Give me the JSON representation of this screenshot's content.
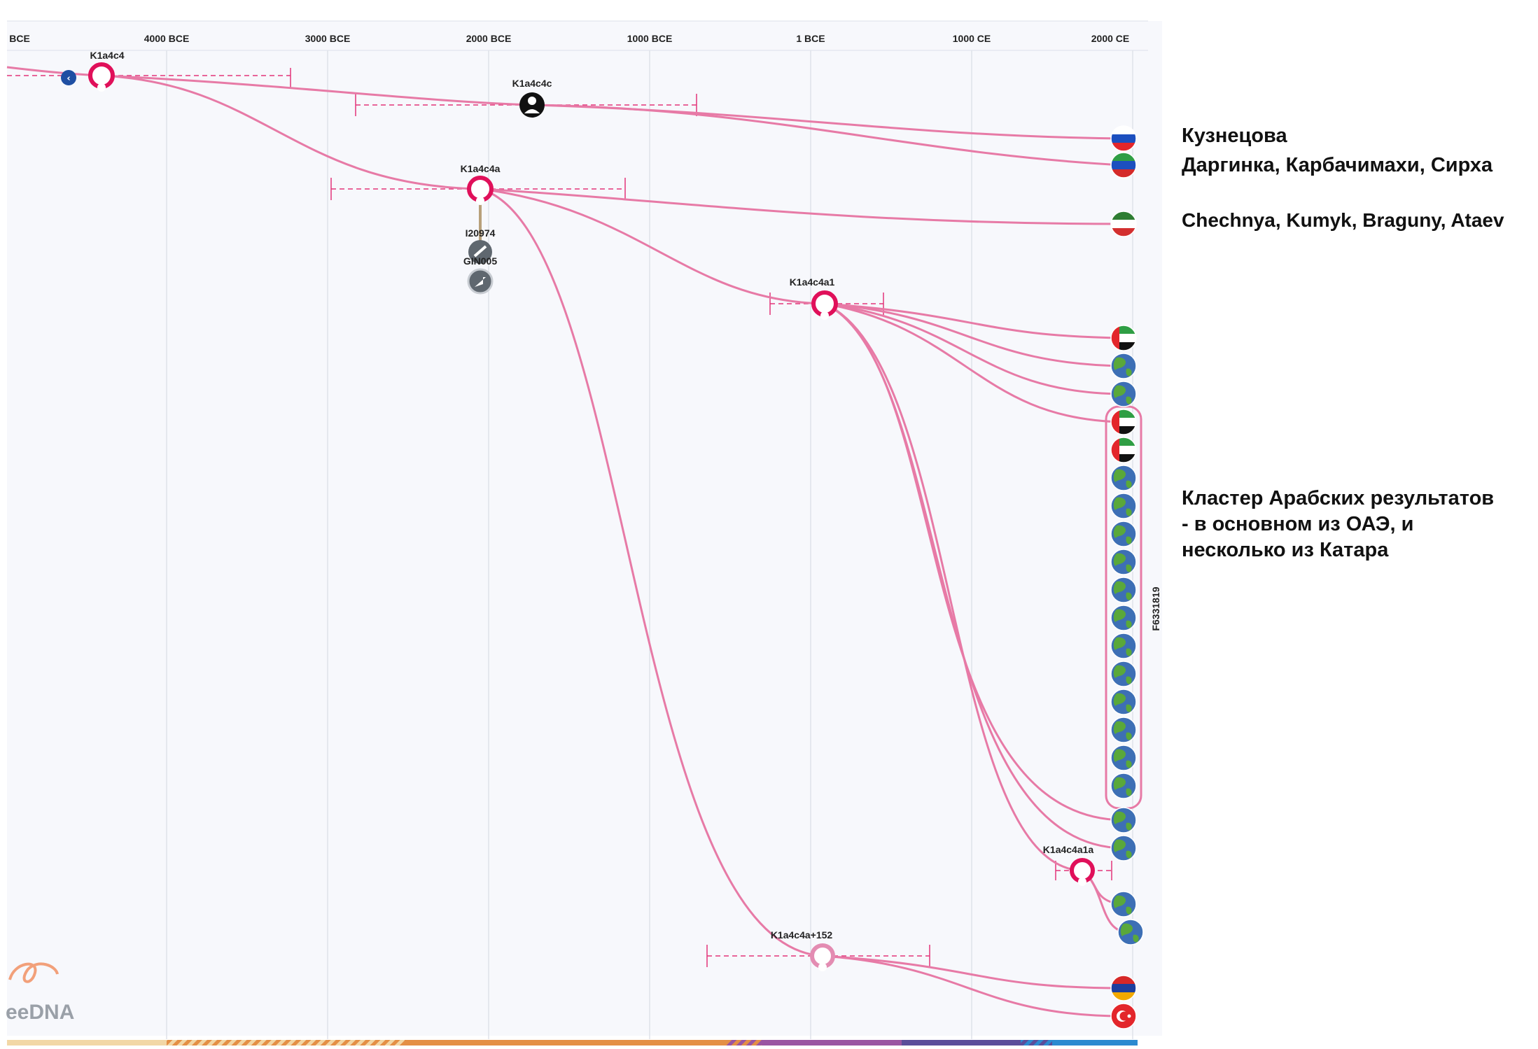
{
  "timeline": {
    "ticks": [
      "BCE",
      "4000 BCE",
      "3000 BCE",
      "2000 BCE",
      "1000 BCE",
      "1 BCE",
      "1000 CE",
      "2000 CE"
    ]
  },
  "nodes": {
    "k1a4c4": "K1a4c4",
    "k1a4c4c": "K1a4c4c",
    "k1a4c4a": "K1a4c4a",
    "i20974": "I20974",
    "gin005": "GIN005",
    "k1a4c4a1": "K1a4c4a1",
    "k1a4c4a1a": "K1a4c4a1a",
    "k1a4c4a152": "K1a4c4a+152"
  },
  "cluster_label": "F6331819",
  "logo": {
    "text": "eeDNA"
  },
  "annotations": {
    "kuznetsova": "Кузнецова",
    "darginka": "Даргинка, Карбачимахи, Сирха",
    "chechnya": "Chechnya, Kumyk, Braguny, Ataev",
    "arab_cluster_line1": "Кластер Арабских результатов",
    "arab_cluster_line2": "- в основном из ОАЭ, и",
    "arab_cluster_line3": "несколько из Катара"
  },
  "colors": {
    "accent": "#e0105a",
    "branch": "#e36f9f",
    "globe": "#3d6fb5",
    "land": "#5aa83a"
  },
  "leaf_flags": [
    "russia",
    "dagestan",
    "chechnya",
    "uae",
    "globe",
    "globe",
    "uae",
    "uae",
    "globe",
    "globe",
    "globe",
    "globe",
    "globe",
    "globe",
    "globe",
    "globe",
    "globe",
    "globe",
    "globe",
    "globe",
    "globe",
    "globe",
    "globe",
    "armenia",
    "turkey"
  ]
}
